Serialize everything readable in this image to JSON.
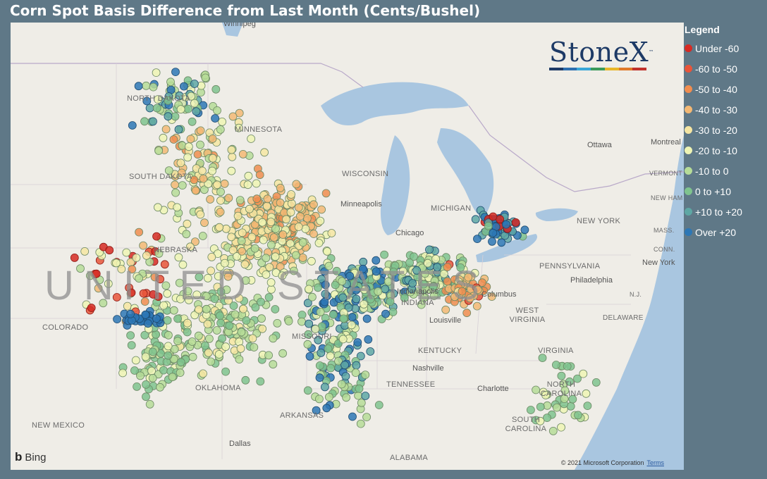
{
  "title": "Corn Spot Basis Difference from Last Month (Cents/Bushel)",
  "legend": {
    "title": "Legend",
    "items": [
      {
        "label": "Under -60",
        "color": "#d62a23"
      },
      {
        "label": "-60 to -50",
        "color": "#e8553a"
      },
      {
        "label": "-50 to -40",
        "color": "#f08d4f"
      },
      {
        "label": "-40 to -30",
        "color": "#f3b874"
      },
      {
        "label": "-30 to -20",
        "color": "#f6e6a2"
      },
      {
        "label": "-20 to -10",
        "color": "#eef4b4"
      },
      {
        "label": "-10 to 0",
        "color": "#b6dc98"
      },
      {
        "label": "0 to +10",
        "color": "#7fc38e"
      },
      {
        "label": "+10 to +20",
        "color": "#5ea7a4"
      },
      {
        "label": "Over +20",
        "color": "#2d77b5"
      }
    ]
  },
  "map": {
    "country_label": "UNITED STATES",
    "labels": {
      "north_dakota": "NORTH DAKOTA",
      "south_dakota": "SOUTH DAKOTA",
      "minnesota": "MINNESOTA",
      "wisconsin": "WISCONSIN",
      "michigan": "MICHIGAN",
      "nebraska": "NEBRASKA",
      "colorado": "COLORADO",
      "missouri": "MISSOURI",
      "oklahoma": "OKLAHOMA",
      "new_mexico": "NEW MEXICO",
      "arkansas": "ARKANSAS",
      "tennessee": "TENNESSEE",
      "kentucky": "KENTUCKY",
      "indiana": "INDIANA",
      "west_virginia": "WEST VIRGINIA",
      "virginia": "VIRGINIA",
      "north_carolina": "NORTH CAROLINA",
      "south_carolina": "SOUTH CAROLINA",
      "alabama": "ALABAMA",
      "pennsylvania": "PENNSYLVANIA",
      "new_york": "NEW YORK",
      "vermont": "VERMONT",
      "new_hampshire": "NEW HAMPSHIRE",
      "massachusetts": "MASS.",
      "connecticut": "CONN.",
      "new_jersey": "N.J.",
      "delaware": "DELAWARE"
    },
    "cities": {
      "winnipeg": "Winnipeg",
      "minneapolis": "Minneapolis",
      "chicago": "Chicago",
      "indianapolis": "Indianapolis",
      "columbus": "Columbus",
      "louisville": "Louisville",
      "nashville": "Nashville",
      "charlotte": "Charlotte",
      "dallas": "Dallas",
      "philadelphia": "Philadelphia",
      "new_york_city": "New York",
      "ottawa": "Ottawa",
      "montreal": "Montreal"
    },
    "logo_text": "StoneX",
    "logo_tm": "™",
    "logo_colors": [
      "#1d3a66",
      "#2e6fb0",
      "#3aa7d8",
      "#3a9a5a",
      "#e8b72a",
      "#e07a2a",
      "#c0322c"
    ],
    "provider": "Bing",
    "copyright": "© 2021 Microsoft Corporation",
    "terms": "Terms"
  }
}
